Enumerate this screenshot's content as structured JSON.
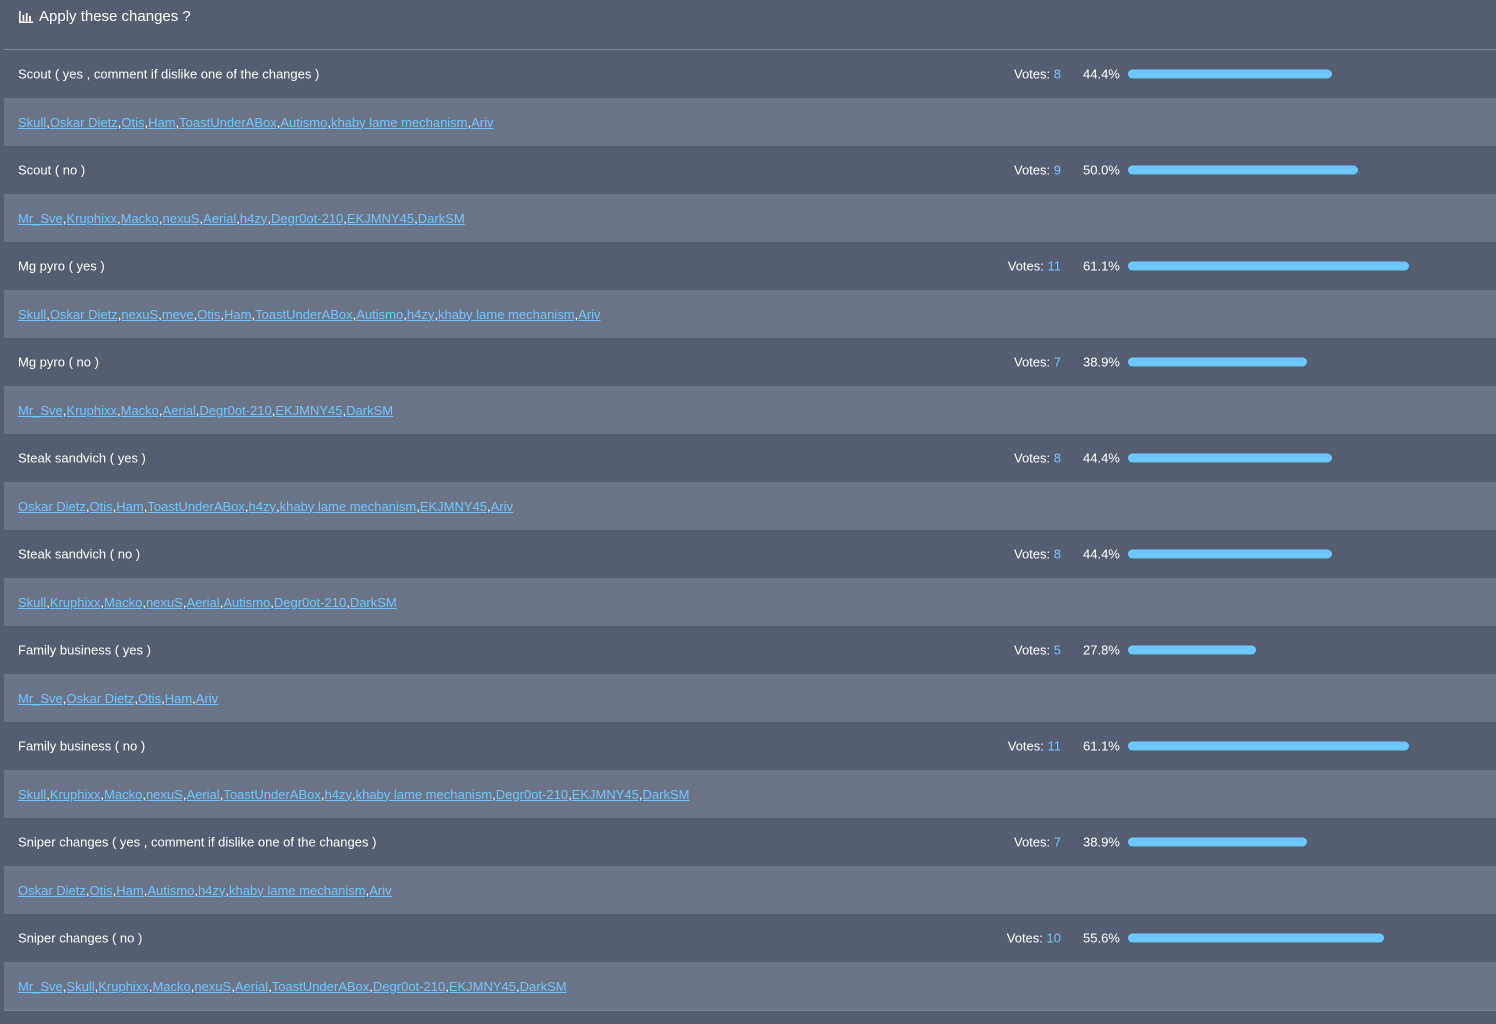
{
  "poll": {
    "title": "Apply these changes ?",
    "votes_label": "Votes:",
    "accent_color": "#6ec6ff",
    "options": [
      {
        "label": "Scout ( yes , comment if dislike one of the changes )",
        "votes": "8",
        "percent_text": "44.4%",
        "percent": 44.4,
        "voters": [
          "Skull",
          "Oskar Dietz",
          "Otis",
          "Ham",
          "ToastUnderABox",
          "Autismo",
          "khaby lame mechanism",
          "Ariv"
        ]
      },
      {
        "label": "Scout ( no )",
        "votes": "9",
        "percent_text": "50.0%",
        "percent": 50.0,
        "voters": [
          "Mr_Sve",
          "Kruphixx",
          "Macko",
          "nexuS",
          "Aerial",
          "h4zy",
          "Degr0ot-210",
          "EKJMNY45",
          "DarkSM"
        ]
      },
      {
        "label": "Mg pyro ( yes )",
        "votes": "11",
        "percent_text": "61.1%",
        "percent": 61.1,
        "voters": [
          "Skull",
          "Oskar Dietz",
          "nexuS",
          "meve",
          "Otis",
          "Ham",
          "ToastUnderABox",
          "Autismo",
          "h4zy",
          "khaby lame mechanism",
          "Ariv"
        ]
      },
      {
        "label": "Mg pyro ( no )",
        "votes": "7",
        "percent_text": "38.9%",
        "percent": 38.9,
        "voters": [
          "Mr_Sve",
          "Kruphixx",
          "Macko",
          "Aerial",
          "Degr0ot-210",
          "EKJMNY45",
          "DarkSM"
        ]
      },
      {
        "label": "Steak sandvich ( yes )",
        "votes": "8",
        "percent_text": "44.4%",
        "percent": 44.4,
        "voters": [
          "Oskar Dietz",
          "Otis",
          "Ham",
          "ToastUnderABox",
          "h4zy",
          "khaby lame mechanism",
          "EKJMNY45",
          "Ariv"
        ]
      },
      {
        "label": "Steak sandvich ( no )",
        "votes": "8",
        "percent_text": "44.4%",
        "percent": 44.4,
        "voters": [
          "Skull",
          "Kruphixx",
          "Macko",
          "nexuS",
          "Aerial",
          "Autismo",
          "Degr0ot-210",
          "DarkSM"
        ]
      },
      {
        "label": "Family business ( yes )",
        "votes": "5",
        "percent_text": "27.8%",
        "percent": 27.8,
        "voters": [
          "Mr_Sve",
          "Oskar Dietz",
          "Otis",
          "Ham",
          "Ariv"
        ]
      },
      {
        "label": "Family business ( no )",
        "votes": "11",
        "percent_text": "61.1%",
        "percent": 61.1,
        "voters": [
          "Skull",
          "Kruphixx",
          "Macko",
          "nexuS",
          "Aerial",
          "ToastUnderABox",
          "h4zy",
          "khaby lame mechanism",
          "Degr0ot-210",
          "EKJMNY45",
          "DarkSM"
        ]
      },
      {
        "label": "Sniper changes ( yes , comment if dislike one of the changes )",
        "votes": "7",
        "percent_text": "38.9%",
        "percent": 38.9,
        "voters": [
          "Oskar Dietz",
          "Otis",
          "Ham",
          "Autismo",
          "h4zy",
          "khaby lame mechanism",
          "Ariv"
        ]
      },
      {
        "label": "Sniper changes ( no )",
        "votes": "10",
        "percent_text": "55.6%",
        "percent": 55.6,
        "voters": [
          "Mr_Sve",
          "Skull",
          "Kruphixx",
          "Macko",
          "nexuS",
          "Aerial",
          "ToastUnderABox",
          "Degr0ot-210",
          "EKJMNY45",
          "DarkSM"
        ]
      }
    ]
  }
}
